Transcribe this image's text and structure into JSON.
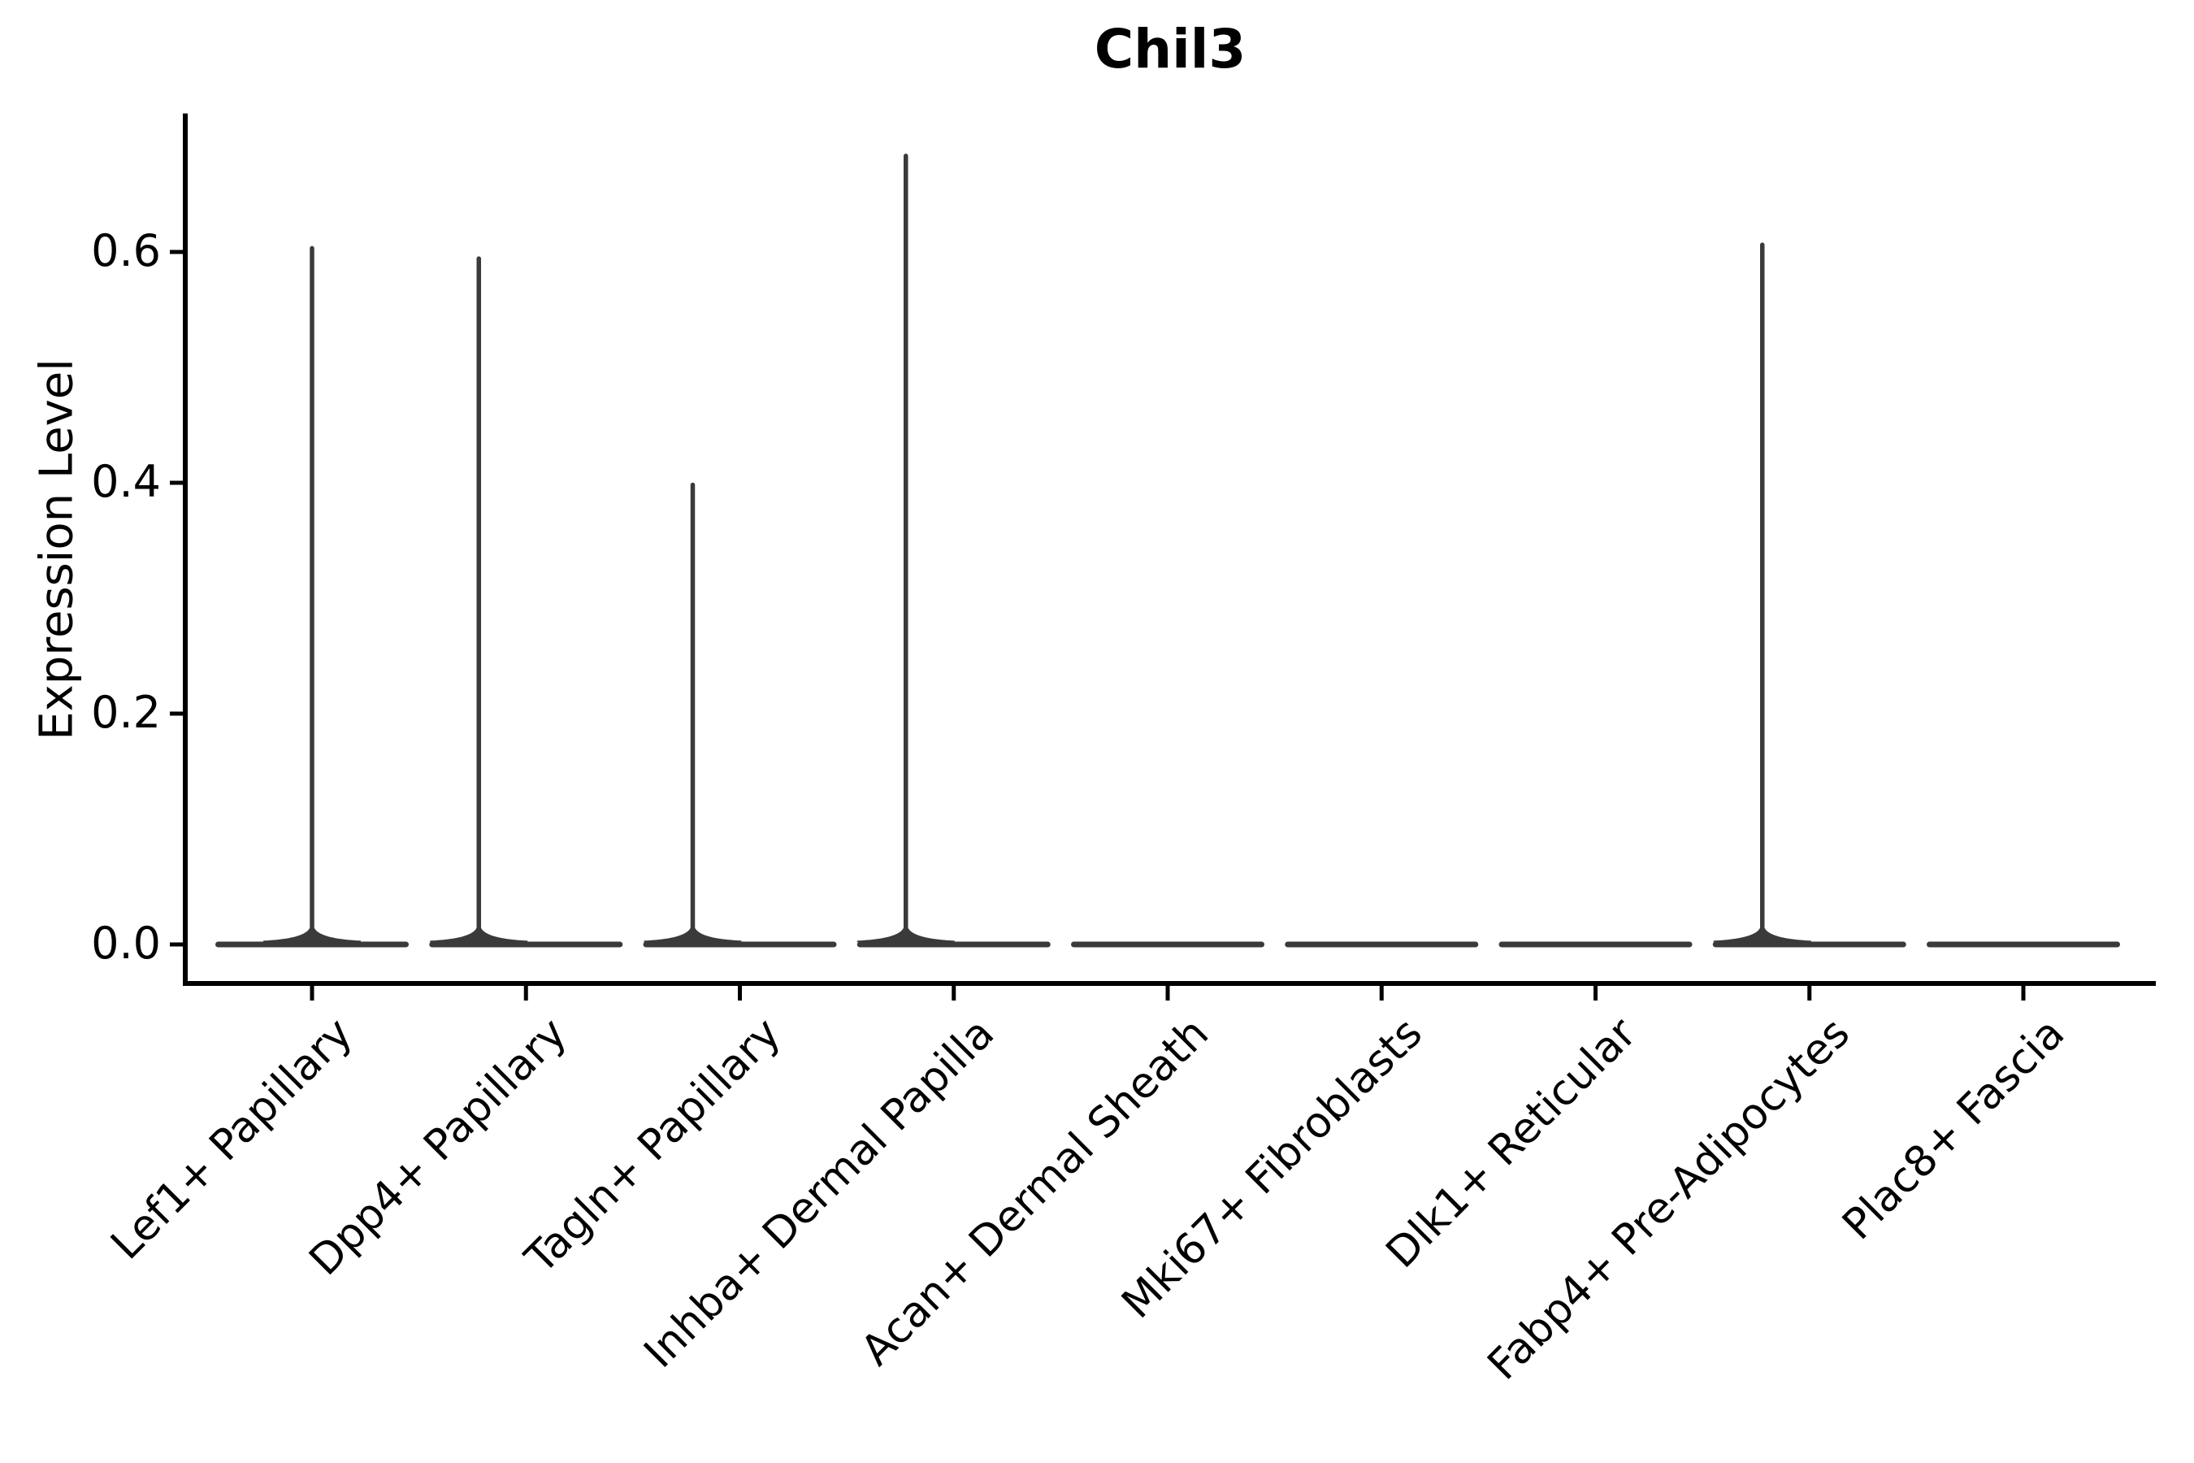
{
  "figure": {
    "title": "Chil3",
    "y_axis_label": "Expression Level"
  },
  "chart_data": {
    "type": "violin",
    "title": "Chil3",
    "xlabel": "",
    "ylabel": "Expression Level",
    "categories": [
      "Lef1+ Papillary",
      "Dpp4+ Papillary",
      "Tagln+ Papillary",
      "Inhba+ Dermal Papilla",
      "Acan+ Dermal Sheath",
      "Mki67+ Fibroblasts",
      "Dlk1+ Reticular",
      "Fabp4+ Pre-Adipocytes",
      "Plac8+ Fascia"
    ],
    "series": [
      {
        "name": "Chil3",
        "max_values": [
          0.605,
          0.596,
          0.4,
          0.685,
          0,
          0,
          0,
          0.608,
          0
        ],
        "body_value": 0.0
      }
    ],
    "yticks": [
      0.0,
      0.2,
      0.4,
      0.6
    ],
    "ytick_labels_top_to_bottom": [
      "0.6",
      "0.4",
      "0.2",
      "0.0"
    ],
    "ylim": [
      -0.033,
      0.72
    ],
    "x_tick_label_rotation_deg": 45,
    "grid": false,
    "legend": false
  },
  "style": {
    "violin_color": "#3a3a3a",
    "axis_color": "#000000",
    "background": "#ffffff"
  }
}
